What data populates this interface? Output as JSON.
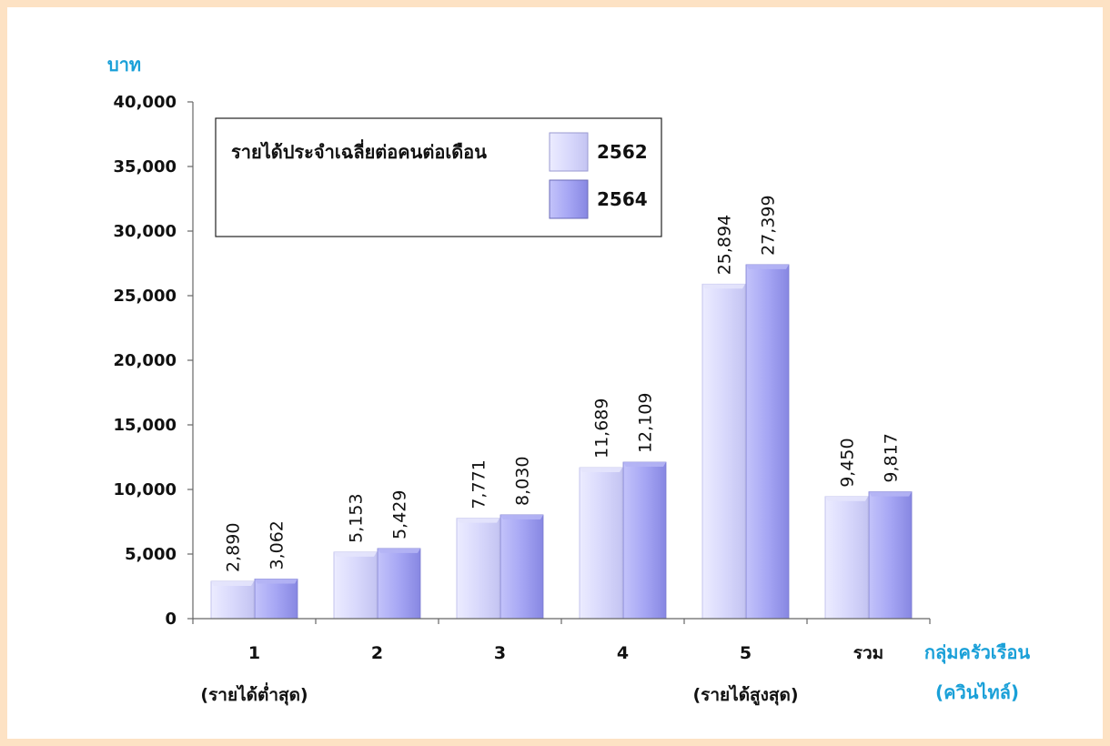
{
  "chart_data": {
    "type": "bar",
    "ylabel": "บาท",
    "xlabel": [
      "กลุ่มครัวเรือน",
      "(ควินไทล์)"
    ],
    "ylim": [
      0,
      40000
    ],
    "yticks": [
      "0",
      "5,000",
      "10,000",
      "15,000",
      "20,000",
      "25,000",
      "30,000",
      "35,000",
      "40,000"
    ],
    "categories": [
      "1",
      "2",
      "3",
      "4",
      "5",
      "รวม"
    ],
    "category_sublabels": [
      "(รายได้ต่ำสุด)",
      "",
      "",
      "",
      "(รายได้สูงสุด)",
      ""
    ],
    "legend_title": "รายได้ประจำเฉลี่ยต่อคนต่อเดือน",
    "legend_position": "top-left",
    "grid": false,
    "series": [
      {
        "name": "2562",
        "values": [
          2890,
          5153,
          7771,
          11689,
          25894,
          9450
        ],
        "labels": [
          "2,890",
          "5,153",
          "7,771",
          "11,689",
          "25,894",
          "9,450"
        ],
        "color": "#d6d6fb"
      },
      {
        "name": "2564",
        "values": [
          3062,
          5429,
          8030,
          12109,
          27399,
          9817
        ],
        "labels": [
          "3,062",
          "5,429",
          "8,030",
          "12,109",
          "27,399",
          "9,817"
        ],
        "color": "#a7a7f5"
      }
    ]
  }
}
